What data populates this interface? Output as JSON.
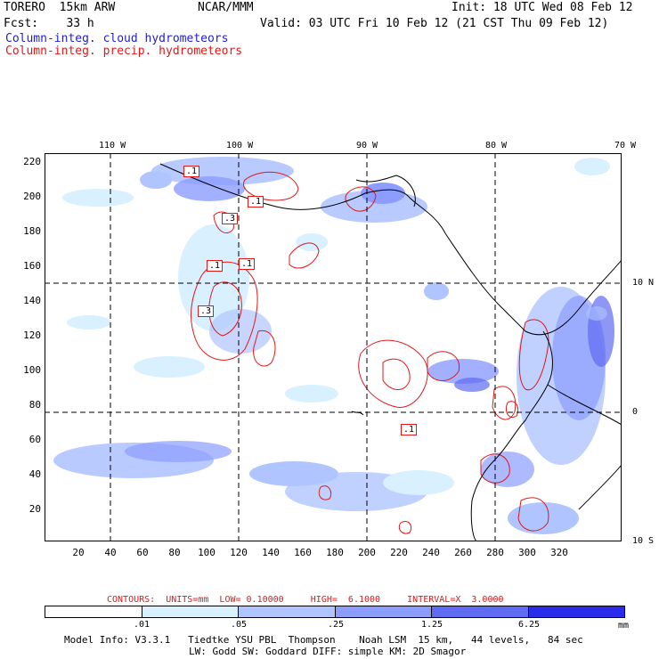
{
  "header": {
    "model": "TORERO  15km ARW",
    "org": "NCAR/MMM",
    "init": "Init: 18 UTC Wed 08 Feb 12",
    "fcst": "Fcst:    33 h",
    "valid": "Valid: 03 UTC Fri 10 Feb 12 (21 CST Thu 09 Feb 12)",
    "field1": "Column-integ. cloud hydrometeors",
    "field2": "Column-integ. precip. hydrometeors"
  },
  "axes": {
    "top_lon": [
      "110 W",
      "100 W",
      "90 W",
      "80 W",
      "70 W"
    ],
    "right_lat": [
      "10 N",
      "0",
      "10 S"
    ],
    "y_ticks": [
      "220",
      "200",
      "180",
      "160",
      "140",
      "120",
      "100",
      "80",
      "60",
      "40",
      "20"
    ],
    "x_ticks": [
      "20",
      "40",
      "60",
      "80",
      "100",
      "120",
      "140",
      "160",
      "180",
      "200",
      "220",
      "240",
      "260",
      "280",
      "300",
      "320"
    ]
  },
  "contour_labels": [
    ".1",
    ".3",
    ".1",
    ".1",
    ".1",
    ".3",
    ".1"
  ],
  "contour_info": {
    "text": "CONTOURS:  UNITS=mm  LOW= 0.10000     HIGH=  6.1000     INTERVAL=X  3.0000"
  },
  "legend": {
    "labels": [
      ".01",
      ".05",
      ".25",
      "1.25",
      "6.25"
    ],
    "unit": "mm",
    "colors": [
      "#ffffff",
      "#d8f0ff",
      "#b0c4ff",
      "#8c9cff",
      "#5f6bf2",
      "#2b2bea"
    ]
  },
  "footer": {
    "line1": "Model Info: V3.3.1   Tiedtke YSU PBL  Thompson    Noah LSM  15 km,   44 levels,   84 sec",
    "line2": "LW: Godd SW: Goddard DIFF: simple KM: 2D Smagor"
  }
}
